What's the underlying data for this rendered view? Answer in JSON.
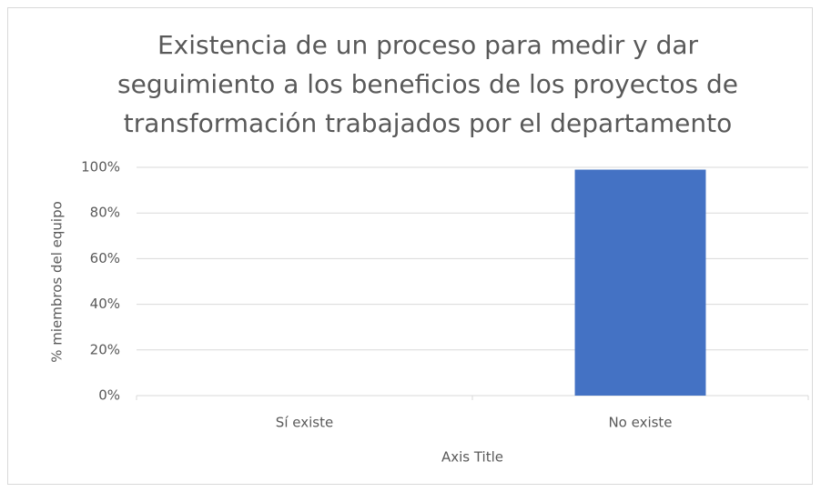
{
  "chart_data": {
    "type": "bar",
    "title": "Existencia de un proceso para medir y dar\nseguimiento a los beneficios de los proyectos de\ntransformación trabajados por el departamento",
    "x_label": "Axis Title",
    "y_label": "% miembros del equipo",
    "categories": [
      "Sí existe",
      "No existe"
    ],
    "values": [
      0,
      99
    ],
    "color": "#4472c4",
    "ylim": [
      0,
      100
    ],
    "yticks": [
      {
        "value": 0,
        "label": "0%"
      },
      {
        "value": 20,
        "label": "20%"
      },
      {
        "value": 40,
        "label": "40%"
      },
      {
        "value": 60,
        "label": "60%"
      },
      {
        "value": 80,
        "label": "80%"
      },
      {
        "value": 100,
        "label": "100%"
      }
    ],
    "grid": true
  }
}
